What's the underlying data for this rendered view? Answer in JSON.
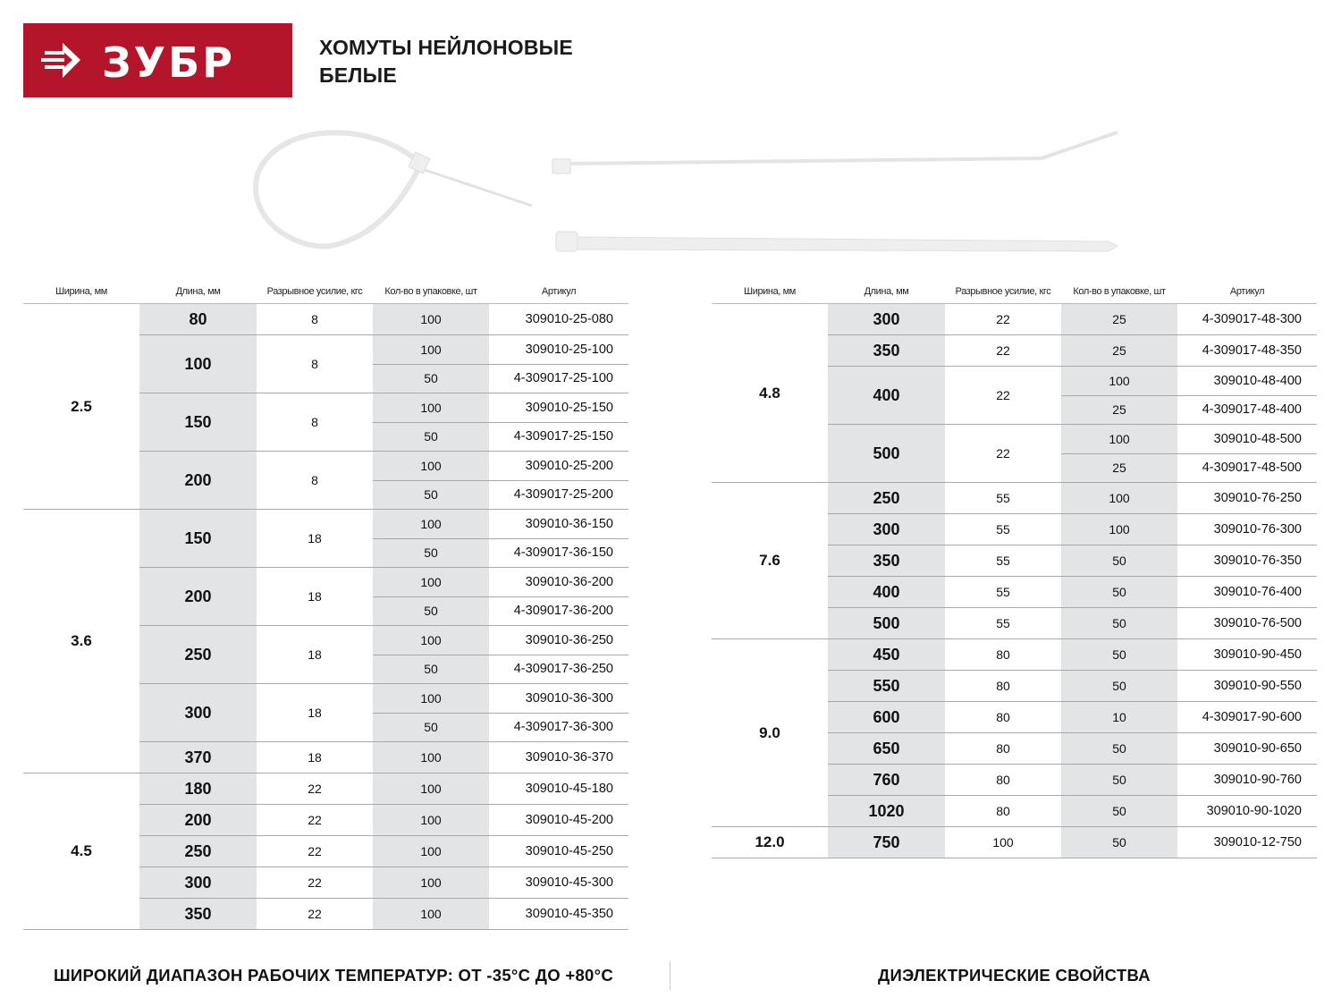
{
  "brand": {
    "name": "ЗУБР",
    "color": "#b5152b"
  },
  "title": {
    "line1": "ХОМУТЫ НЕЙЛОНОВЫЕ",
    "line2": "БЕЛЫЕ"
  },
  "headers": [
    "Ширина, мм",
    "Длина, мм",
    "Разрывное усилие, кгс",
    "Кол-во в упаковке, шт",
    "Артикул"
  ],
  "left_table": {
    "groups": [
      {
        "width": "2.5",
        "items": [
          {
            "length": "80",
            "force": "8",
            "packs": [
              {
                "qty": "100",
                "article": "309010-25-080"
              }
            ]
          },
          {
            "length": "100",
            "force": "8",
            "packs": [
              {
                "qty": "100",
                "article": "309010-25-100"
              },
              {
                "qty": "50",
                "article": "4-309017-25-100"
              }
            ]
          },
          {
            "length": "150",
            "force": "8",
            "packs": [
              {
                "qty": "100",
                "article": "309010-25-150"
              },
              {
                "qty": "50",
                "article": "4-309017-25-150"
              }
            ]
          },
          {
            "length": "200",
            "force": "8",
            "packs": [
              {
                "qty": "100",
                "article": "309010-25-200"
              },
              {
                "qty": "50",
                "article": "4-309017-25-200"
              }
            ]
          }
        ]
      },
      {
        "width": "3.6",
        "items": [
          {
            "length": "150",
            "force": "18",
            "packs": [
              {
                "qty": "100",
                "article": "309010-36-150"
              },
              {
                "qty": "50",
                "article": "4-309017-36-150"
              }
            ]
          },
          {
            "length": "200",
            "force": "18",
            "packs": [
              {
                "qty": "100",
                "article": "309010-36-200"
              },
              {
                "qty": "50",
                "article": "4-309017-36-200"
              }
            ]
          },
          {
            "length": "250",
            "force": "18",
            "packs": [
              {
                "qty": "100",
                "article": "309010-36-250"
              },
              {
                "qty": "50",
                "article": "4-309017-36-250"
              }
            ]
          },
          {
            "length": "300",
            "force": "18",
            "packs": [
              {
                "qty": "100",
                "article": "309010-36-300"
              },
              {
                "qty": "50",
                "article": "4-309017-36-300"
              }
            ]
          },
          {
            "length": "370",
            "force": "18",
            "packs": [
              {
                "qty": "100",
                "article": "309010-36-370"
              }
            ]
          }
        ]
      },
      {
        "width": "4.5",
        "items": [
          {
            "length": "180",
            "force": "22",
            "packs": [
              {
                "qty": "100",
                "article": "309010-45-180"
              }
            ]
          },
          {
            "length": "200",
            "force": "22",
            "packs": [
              {
                "qty": "100",
                "article": "309010-45-200"
              }
            ]
          },
          {
            "length": "250",
            "force": "22",
            "packs": [
              {
                "qty": "100",
                "article": "309010-45-250"
              }
            ]
          },
          {
            "length": "300",
            "force": "22",
            "packs": [
              {
                "qty": "100",
                "article": "309010-45-300"
              }
            ]
          },
          {
            "length": "350",
            "force": "22",
            "packs": [
              {
                "qty": "100",
                "article": "309010-45-350"
              }
            ]
          }
        ]
      }
    ]
  },
  "right_table": {
    "groups": [
      {
        "width": "4.8",
        "items": [
          {
            "length": "300",
            "force": "22",
            "packs": [
              {
                "qty": "25",
                "article": "4-309017-48-300"
              }
            ]
          },
          {
            "length": "350",
            "force": "22",
            "packs": [
              {
                "qty": "25",
                "article": "4-309017-48-350"
              }
            ]
          },
          {
            "length": "400",
            "force": "22",
            "packs": [
              {
                "qty": "100",
                "article": "309010-48-400"
              },
              {
                "qty": "25",
                "article": "4-309017-48-400"
              }
            ]
          },
          {
            "length": "500",
            "force": "22",
            "packs": [
              {
                "qty": "100",
                "article": "309010-48-500"
              },
              {
                "qty": "25",
                "article": "4-309017-48-500"
              }
            ]
          }
        ]
      },
      {
        "width": "7.6",
        "items": [
          {
            "length": "250",
            "force": "55",
            "packs": [
              {
                "qty": "100",
                "article": "309010-76-250"
              }
            ]
          },
          {
            "length": "300",
            "force": "55",
            "packs": [
              {
                "qty": "100",
                "article": "309010-76-300"
              }
            ]
          },
          {
            "length": "350",
            "force": "55",
            "packs": [
              {
                "qty": "50",
                "article": "309010-76-350"
              }
            ]
          },
          {
            "length": "400",
            "force": "55",
            "packs": [
              {
                "qty": "50",
                "article": "309010-76-400"
              }
            ]
          },
          {
            "length": "500",
            "force": "55",
            "packs": [
              {
                "qty": "50",
                "article": "309010-76-500"
              }
            ]
          }
        ]
      },
      {
        "width": "9.0",
        "items": [
          {
            "length": "450",
            "force": "80",
            "packs": [
              {
                "qty": "50",
                "article": "309010-90-450"
              }
            ]
          },
          {
            "length": "550",
            "force": "80",
            "packs": [
              {
                "qty": "50",
                "article": "309010-90-550"
              }
            ]
          },
          {
            "length": "600",
            "force": "80",
            "packs": [
              {
                "qty": "10",
                "article": "4-309017-90-600"
              }
            ]
          },
          {
            "length": "650",
            "force": "80",
            "packs": [
              {
                "qty": "50",
                "article": "309010-90-650"
              }
            ]
          },
          {
            "length": "760",
            "force": "80",
            "packs": [
              {
                "qty": "50",
                "article": "309010-90-760"
              }
            ]
          },
          {
            "length": "1020",
            "force": "80",
            "packs": [
              {
                "qty": "50",
                "article": "309010-90-1020"
              }
            ]
          }
        ]
      },
      {
        "width": "12.0",
        "items": [
          {
            "length": "750",
            "force": "100",
            "packs": [
              {
                "qty": "50",
                "article": "309010-12-750"
              }
            ]
          }
        ]
      }
    ]
  },
  "footer": {
    "left": "ШИРОКИЙ ДИАПАЗОН РАБОЧИХ ТЕМПЕРАТУР: ОТ -35°С ДО +80°С",
    "right": "ДИЭЛЕКТРИЧЕСКИЕ СВОЙСТВА"
  }
}
